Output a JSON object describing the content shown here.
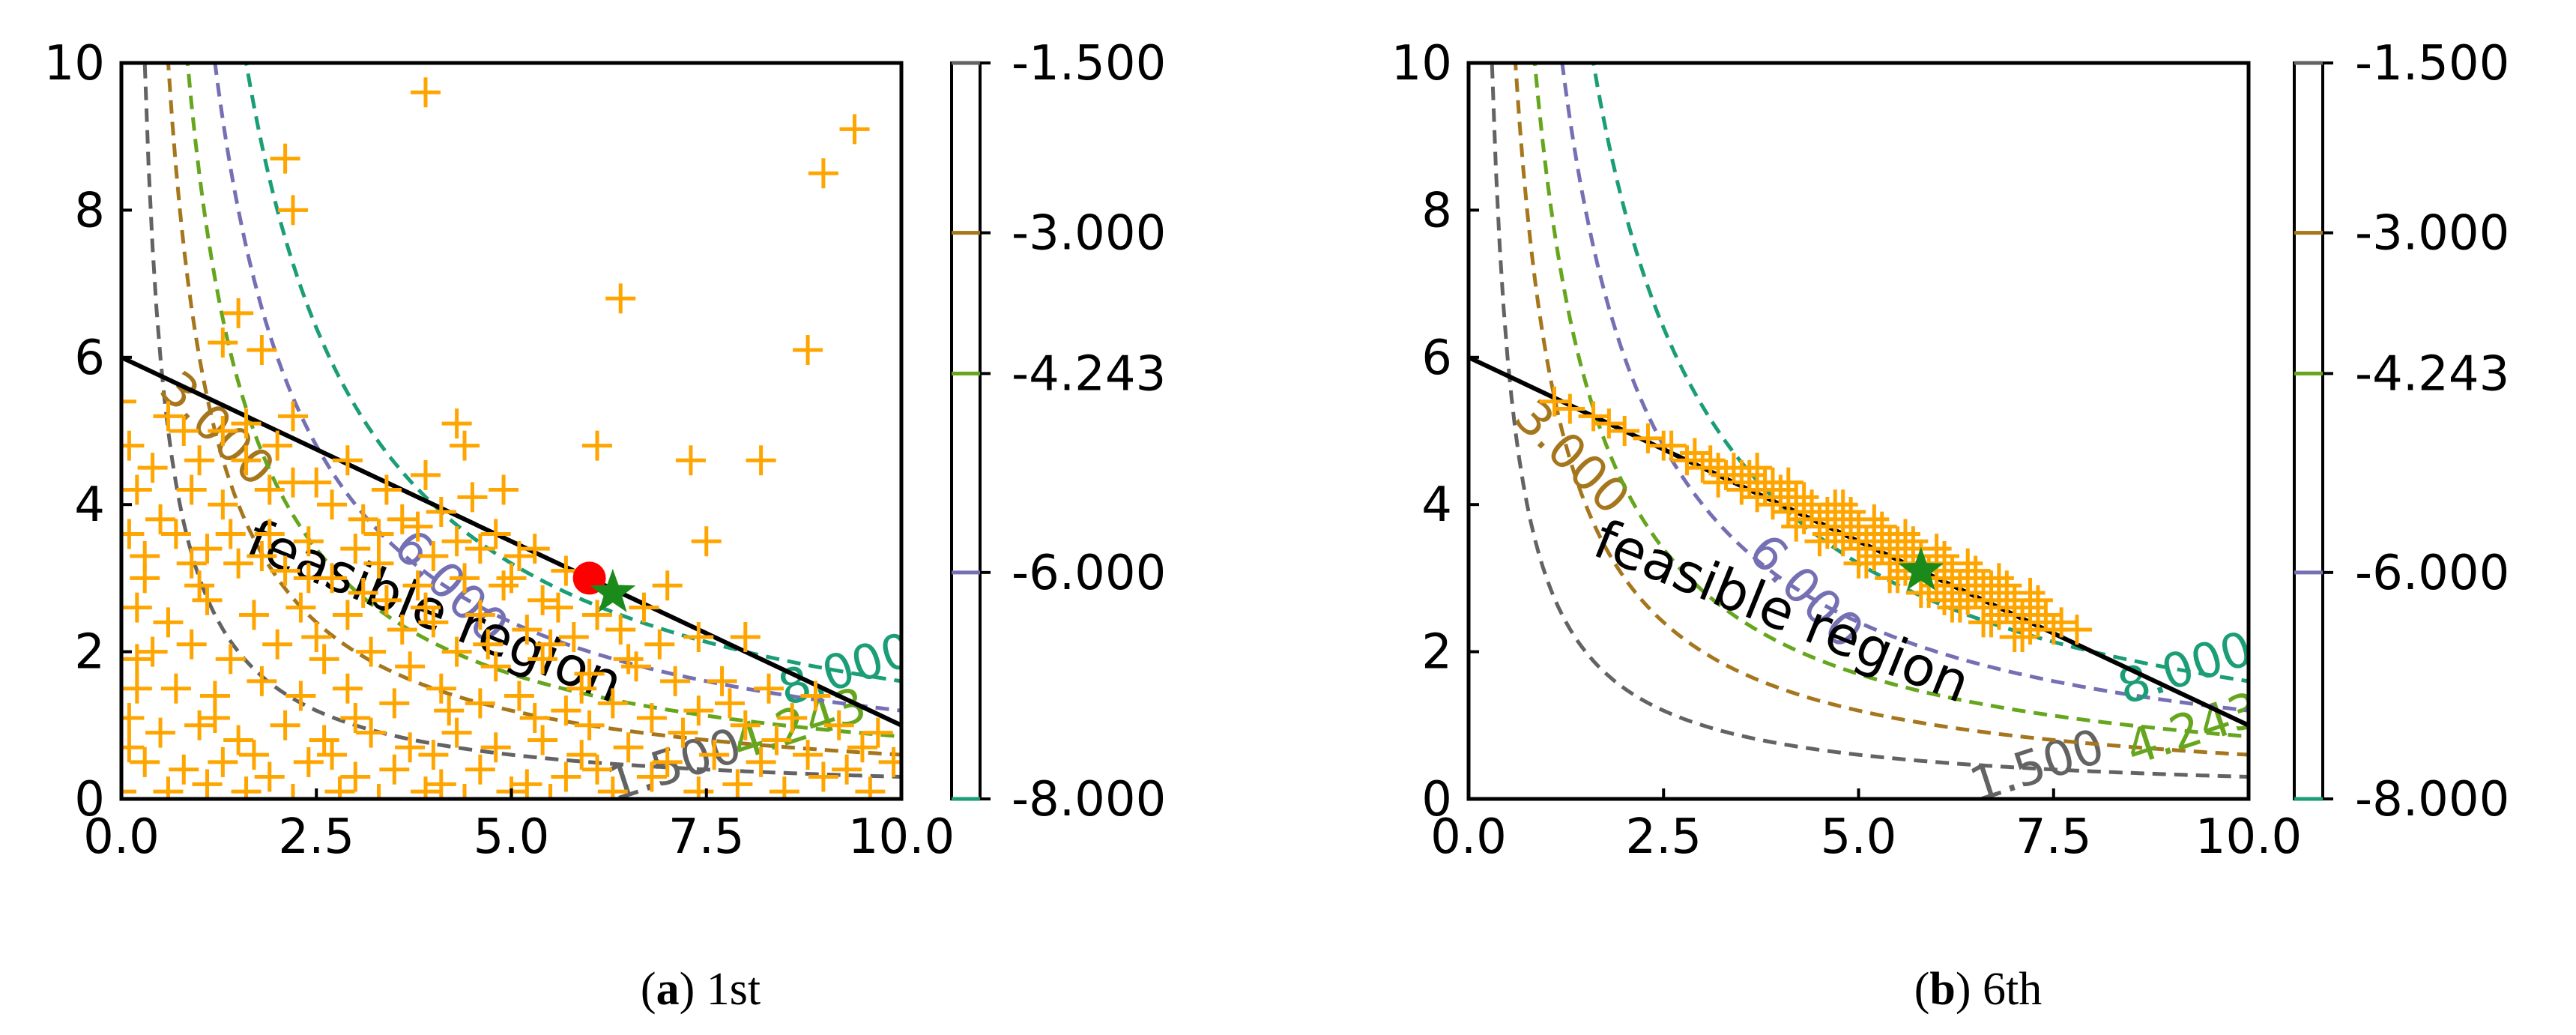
{
  "chart_data": [
    {
      "type": "scatter",
      "panel_label": "a",
      "caption_text": "1st",
      "xlim": [
        0,
        10
      ],
      "ylim": [
        0,
        10
      ],
      "xticks": [
        "0.0",
        "2.5",
        "5.0",
        "7.5",
        "10.0"
      ],
      "yticks": [
        "0",
        "2",
        "4",
        "6",
        "8",
        "10"
      ],
      "constraint_line": {
        "x": [
          0,
          10
        ],
        "y": [
          6,
          1
        ]
      },
      "region_label": "feasible region",
      "contours": [
        {
          "label": "1.500",
          "level": -1.5,
          "color": "#636363",
          "label_x": 7.1
        },
        {
          "label": "3.000",
          "level": -3.0,
          "color": "#a6761d",
          "label_x": 1.2
        },
        {
          "label": "4.243",
          "level": -4.243,
          "color": "#66a61e",
          "label_x": 8.7
        },
        {
          "label": "6.000",
          "level": -6.0,
          "color": "#7570b3",
          "label_x": 4.2
        },
        {
          "label": "8.000",
          "level": -8.0,
          "color": "#1b9e77",
          "label_x": 9.3
        }
      ],
      "best_point": {
        "x": 6.3,
        "y": 2.8,
        "color": "#1a8a1a"
      },
      "reference_point": {
        "x": 6.0,
        "y": 3.0,
        "color": "#ff0000"
      },
      "samples": [
        [
          3.9,
          9.6
        ],
        [
          2.1,
          8.7
        ],
        [
          2.2,
          8.0
        ],
        [
          9.4,
          9.1
        ],
        [
          9.0,
          8.5
        ],
        [
          6.4,
          6.8
        ],
        [
          8.8,
          6.1
        ],
        [
          1.5,
          6.6
        ],
        [
          1.3,
          6.2
        ],
        [
          1.8,
          6.1
        ],
        [
          0.0,
          5.4
        ],
        [
          0.6,
          5.2
        ],
        [
          0.8,
          5.0
        ],
        [
          1.3,
          5.0
        ],
        [
          1.6,
          5.1
        ],
        [
          2.2,
          5.2
        ],
        [
          2.0,
          4.8
        ],
        [
          4.3,
          5.1
        ],
        [
          4.4,
          4.8
        ],
        [
          6.1,
          4.8
        ],
        [
          7.3,
          4.6
        ],
        [
          8.2,
          4.6
        ],
        [
          2.9,
          4.6
        ],
        [
          1.6,
          4.6
        ],
        [
          0.4,
          4.5
        ],
        [
          2.2,
          4.3
        ],
        [
          3.4,
          4.2
        ],
        [
          3.9,
          4.4
        ],
        [
          4.5,
          4.1
        ],
        [
          4.9,
          4.2
        ],
        [
          0.2,
          4.2
        ],
        [
          0.9,
          4.2
        ],
        [
          1.3,
          4.0
        ],
        [
          1.9,
          4.2
        ],
        [
          2.7,
          4.0
        ],
        [
          3.1,
          3.8
        ],
        [
          3.6,
          3.8
        ],
        [
          3.8,
          3.7
        ],
        [
          4.1,
          3.9
        ],
        [
          4.8,
          3.6
        ],
        [
          5.3,
          3.4
        ],
        [
          7.5,
          3.5
        ],
        [
          0.1,
          3.6
        ],
        [
          0.7,
          3.6
        ],
        [
          1.4,
          3.6
        ],
        [
          1.9,
          3.6
        ],
        [
          2.4,
          3.5
        ],
        [
          3.0,
          3.4
        ],
        [
          4.0,
          3.3
        ],
        [
          4.6,
          3.4
        ],
        [
          5.1,
          3.3
        ],
        [
          5.7,
          3.1
        ],
        [
          0.3,
          3.0
        ],
        [
          0.9,
          3.2
        ],
        [
          1.5,
          3.2
        ],
        [
          2.1,
          3.1
        ],
        [
          2.7,
          3.0
        ],
        [
          3.3,
          3.2
        ],
        [
          3.8,
          2.9
        ],
        [
          4.4,
          3.0
        ],
        [
          4.9,
          2.9
        ],
        [
          5.4,
          2.7
        ],
        [
          6.1,
          2.5
        ],
        [
          0.2,
          2.6
        ],
        [
          0.6,
          2.4
        ],
        [
          1.1,
          2.7
        ],
        [
          1.7,
          2.5
        ],
        [
          2.3,
          2.6
        ],
        [
          2.9,
          2.5
        ],
        [
          3.4,
          2.7
        ],
        [
          4.0,
          2.4
        ],
        [
          4.6,
          2.5
        ],
        [
          5.2,
          2.3
        ],
        [
          5.8,
          2.2
        ],
        [
          6.4,
          2.3
        ],
        [
          6.9,
          2.1
        ],
        [
          7.4,
          2.2
        ],
        [
          8.0,
          2.2
        ],
        [
          0.4,
          2.0
        ],
        [
          0.9,
          2.1
        ],
        [
          1.4,
          1.9
        ],
        [
          2.0,
          2.1
        ],
        [
          2.6,
          1.9
        ],
        [
          3.2,
          2.0
        ],
        [
          3.7,
          1.8
        ],
        [
          4.3,
          2.0
        ],
        [
          4.8,
          1.8
        ],
        [
          5.4,
          1.9
        ],
        [
          6.0,
          1.7
        ],
        [
          6.6,
          1.8
        ],
        [
          7.1,
          1.6
        ],
        [
          7.7,
          1.6
        ],
        [
          8.3,
          1.5
        ],
        [
          8.9,
          1.4
        ],
        [
          0.2,
          1.5
        ],
        [
          0.7,
          1.5
        ],
        [
          1.2,
          1.4
        ],
        [
          1.8,
          1.6
        ],
        [
          2.3,
          1.4
        ],
        [
          2.9,
          1.5
        ],
        [
          3.5,
          1.3
        ],
        [
          4.1,
          1.5
        ],
        [
          4.6,
          1.3
        ],
        [
          5.1,
          1.4
        ],
        [
          5.7,
          1.2
        ],
        [
          6.3,
          1.3
        ],
        [
          6.8,
          1.1
        ],
        [
          7.4,
          1.2
        ],
        [
          8.0,
          1.0
        ],
        [
          8.6,
          1.1
        ],
        [
          9.2,
          1.0
        ],
        [
          9.7,
          0.9
        ],
        [
          0.1,
          1.1
        ],
        [
          0.5,
          0.9
        ],
        [
          1.0,
          1.0
        ],
        [
          1.5,
          0.8
        ],
        [
          2.1,
          1.0
        ],
        [
          2.6,
          0.8
        ],
        [
          3.2,
          0.9
        ],
        [
          3.7,
          0.7
        ],
        [
          4.3,
          0.9
        ],
        [
          4.8,
          0.7
        ],
        [
          5.4,
          0.8
        ],
        [
          5.9,
          0.6
        ],
        [
          6.5,
          0.7
        ],
        [
          7.0,
          0.5
        ],
        [
          7.6,
          0.6
        ],
        [
          8.2,
          0.5
        ],
        [
          8.8,
          0.6
        ],
        [
          9.3,
          0.4
        ],
        [
          9.9,
          0.5
        ],
        [
          0.3,
          0.5
        ],
        [
          0.8,
          0.4
        ],
        [
          1.3,
          0.5
        ],
        [
          1.9,
          0.3
        ],
        [
          2.4,
          0.5
        ],
        [
          3.0,
          0.3
        ],
        [
          3.5,
          0.4
        ],
        [
          4.1,
          0.2
        ],
        [
          4.6,
          0.4
        ],
        [
          5.2,
          0.2
        ],
        [
          5.7,
          0.3
        ],
        [
          6.3,
          0.1
        ],
        [
          6.8,
          0.3
        ],
        [
          7.4,
          0.1
        ],
        [
          7.9,
          0.2
        ],
        [
          8.5,
          0.1
        ],
        [
          9.0,
          0.3
        ],
        [
          9.6,
          0.1
        ],
        [
          0.0,
          0.1
        ],
        [
          0.6,
          0.1
        ],
        [
          1.1,
          0.2
        ],
        [
          1.6,
          0.1
        ],
        [
          2.2,
          0.0
        ],
        [
          2.8,
          0.1
        ],
        [
          3.3,
          0.0
        ],
        [
          3.9,
          0.1
        ],
        [
          4.4,
          0.0
        ],
        [
          5.0,
          0.1
        ],
        [
          5.5,
          0.0
        ],
        [
          0.1,
          0.7
        ],
        [
          0.2,
          1.9
        ],
        [
          0.3,
          3.3
        ],
        [
          0.1,
          4.8
        ],
        [
          1.0,
          2.9
        ],
        [
          1.2,
          1.1
        ],
        [
          2.5,
          2.2
        ],
        [
          3.0,
          1.1
        ],
        [
          3.6,
          2.3
        ],
        [
          4.2,
          1.2
        ],
        [
          4.7,
          2.1
        ],
        [
          5.3,
          1.1
        ],
        [
          5.9,
          1.5
        ],
        [
          6.5,
          1.9
        ],
        [
          7.2,
          0.9
        ],
        [
          7.8,
          1.3
        ],
        [
          8.4,
          0.8
        ],
        [
          9.5,
          0.7
        ],
        [
          1.7,
          0.6
        ],
        [
          2.7,
          0.6
        ],
        [
          4.0,
          0.6
        ],
        [
          6.1,
          0.4
        ],
        [
          6.0,
          1.0
        ],
        [
          5.5,
          2.1
        ],
        [
          3.9,
          2.6
        ],
        [
          3.1,
          2.8
        ],
        [
          2.4,
          3.0
        ],
        [
          1.8,
          3.3
        ],
        [
          1.1,
          3.4
        ],
        [
          0.5,
          3.8
        ],
        [
          1.0,
          4.6
        ],
        [
          2.5,
          4.3
        ],
        [
          3.3,
          3.6
        ],
        [
          4.3,
          3.5
        ],
        [
          5.0,
          3.0
        ],
        [
          5.6,
          2.6
        ],
        [
          6.7,
          2.6
        ],
        [
          7.0,
          2.9
        ]
      ]
    },
    {
      "type": "scatter",
      "panel_label": "b",
      "caption_text": "6th",
      "xlim": [
        0,
        10
      ],
      "ylim": [
        0,
        10
      ],
      "xticks": [
        "0.0",
        "2.5",
        "5.0",
        "7.5",
        "10.0"
      ],
      "yticks": [
        "0",
        "2",
        "4",
        "6",
        "8",
        "10"
      ],
      "constraint_line": {
        "x": [
          0,
          10
        ],
        "y": [
          6,
          1
        ]
      },
      "region_label": "feasible region",
      "contours": [
        {
          "label": "1.500",
          "level": -1.5,
          "color": "#636363",
          "label_x": 7.3
        },
        {
          "label": "3.000",
          "level": -3.0,
          "color": "#a6761d",
          "label_x": 1.3
        },
        {
          "label": "4.243",
          "level": -4.243,
          "color": "#66a61e",
          "label_x": 9.3
        },
        {
          "label": "6.000",
          "level": -6.0,
          "color": "#7570b3",
          "label_x": 4.3
        },
        {
          "label": "8.000",
          "level": -8.0,
          "color": "#1b9e77",
          "label_x": 9.2
        }
      ],
      "best_point": {
        "x": 5.8,
        "y": 3.1,
        "color": "#1a8a1a"
      },
      "samples": [
        [
          1.1,
          5.4
        ],
        [
          1.3,
          5.3
        ],
        [
          1.6,
          5.2
        ],
        [
          1.8,
          5.1
        ],
        [
          2.0,
          5.0
        ],
        [
          2.3,
          4.9
        ],
        [
          2.5,
          4.8
        ],
        [
          2.8,
          4.6
        ],
        [
          3.0,
          4.5
        ],
        [
          3.1,
          4.6
        ],
        [
          3.2,
          4.3
        ],
        [
          3.3,
          4.4
        ],
        [
          3.4,
          4.5
        ],
        [
          3.5,
          4.2
        ],
        [
          3.6,
          4.3
        ],
        [
          3.6,
          4.4
        ],
        [
          3.7,
          4.1
        ],
        [
          3.8,
          4.2
        ],
        [
          3.8,
          4.3
        ],
        [
          3.9,
          4.0
        ],
        [
          4.0,
          4.1
        ],
        [
          4.0,
          4.2
        ],
        [
          4.1,
          3.9
        ],
        [
          4.2,
          4.0
        ],
        [
          4.2,
          4.1
        ],
        [
          4.3,
          3.8
        ],
        [
          4.4,
          3.9
        ],
        [
          4.4,
          4.0
        ],
        [
          4.5,
          3.7
        ],
        [
          4.5,
          3.8
        ],
        [
          4.6,
          3.9
        ],
        [
          4.7,
          3.6
        ],
        [
          4.7,
          3.7
        ],
        [
          4.8,
          3.8
        ],
        [
          4.8,
          3.5
        ],
        [
          4.9,
          3.6
        ],
        [
          5.0,
          3.7
        ],
        [
          5.0,
          3.4
        ],
        [
          5.1,
          3.5
        ],
        [
          5.2,
          3.6
        ],
        [
          5.2,
          3.3
        ],
        [
          5.3,
          3.4
        ],
        [
          5.4,
          3.5
        ],
        [
          5.4,
          3.2
        ],
        [
          5.5,
          3.3
        ],
        [
          5.6,
          3.4
        ],
        [
          5.6,
          3.1
        ],
        [
          5.7,
          3.2
        ],
        [
          5.8,
          3.0
        ],
        [
          5.8,
          3.3
        ],
        [
          5.9,
          3.1
        ],
        [
          6.0,
          2.9
        ],
        [
          6.0,
          3.2
        ],
        [
          6.1,
          3.0
        ],
        [
          6.2,
          2.8
        ],
        [
          6.2,
          3.1
        ],
        [
          6.3,
          2.9
        ],
        [
          6.4,
          2.7
        ],
        [
          6.4,
          3.0
        ],
        [
          6.5,
          2.8
        ],
        [
          6.6,
          2.6
        ],
        [
          6.6,
          2.9
        ],
        [
          6.7,
          2.7
        ],
        [
          6.8,
          2.5
        ],
        [
          6.8,
          2.8
        ],
        [
          6.9,
          2.6
        ],
        [
          7.0,
          2.4
        ],
        [
          7.0,
          2.7
        ],
        [
          7.1,
          2.5
        ],
        [
          7.2,
          2.3
        ],
        [
          7.2,
          2.6
        ],
        [
          7.3,
          2.4
        ],
        [
          7.4,
          2.5
        ],
        [
          7.5,
          2.3
        ],
        [
          7.6,
          2.4
        ],
        [
          7.8,
          2.3
        ],
        [
          3.5,
          4.4
        ],
        [
          3.9,
          4.3
        ],
        [
          4.3,
          4.1
        ],
        [
          4.6,
          3.6
        ],
        [
          4.9,
          3.9
        ],
        [
          5.1,
          3.2
        ],
        [
          5.3,
          3.7
        ],
        [
          5.5,
          3.0
        ],
        [
          5.7,
          3.5
        ],
        [
          5.9,
          2.8
        ],
        [
          6.1,
          3.3
        ],
        [
          6.3,
          2.6
        ],
        [
          6.5,
          3.1
        ],
        [
          6.7,
          2.4
        ],
        [
          6.9,
          2.9
        ],
        [
          7.1,
          2.2
        ],
        [
          7.3,
          2.7
        ],
        [
          3.7,
          4.5
        ],
        [
          4.1,
          4.3
        ],
        [
          4.5,
          3.5
        ],
        [
          4.7,
          4.0
        ],
        [
          5.0,
          3.2
        ],
        [
          5.2,
          3.8
        ],
        [
          5.4,
          3.0
        ],
        [
          5.6,
          3.6
        ],
        [
          5.8,
          2.8
        ],
        [
          6.0,
          3.4
        ],
        [
          6.2,
          2.6
        ],
        [
          6.4,
          3.2
        ],
        [
          6.6,
          2.4
        ],
        [
          6.8,
          3.0
        ],
        [
          7.0,
          2.2
        ],
        [
          7.2,
          2.8
        ],
        [
          4.2,
          3.7
        ],
        [
          4.8,
          4.0
        ],
        [
          5.5,
          3.5
        ],
        [
          6.1,
          2.7
        ],
        [
          6.7,
          2.9
        ],
        [
          3.2,
          4.5
        ],
        [
          2.9,
          4.7
        ],
        [
          2.6,
          4.8
        ]
      ]
    }
  ],
  "colorbar": {
    "ticks": [
      "-1.500",
      "-3.000",
      "-4.243",
      "-6.000",
      "-8.000"
    ],
    "levels": [
      -1.5,
      -3.0,
      -4.243,
      -6.0,
      -8.0
    ],
    "colors": [
      "#636363",
      "#a6761d",
      "#66a61e",
      "#7570b3",
      "#1b9e77"
    ],
    "range": [
      -8.0,
      -1.5
    ]
  }
}
